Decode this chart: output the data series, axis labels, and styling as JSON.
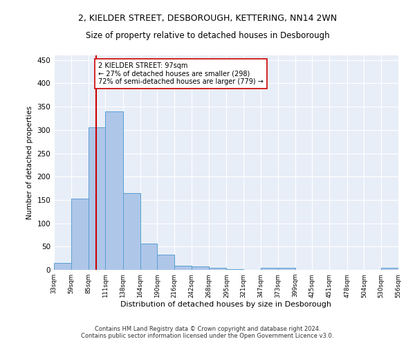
{
  "title": "2, KIELDER STREET, DESBOROUGH, KETTERING, NN14 2WN",
  "subtitle": "Size of property relative to detached houses in Desborough",
  "xlabel": "Distribution of detached houses by size in Desborough",
  "ylabel": "Number of detached properties",
  "bar_color": "#aec6e8",
  "bar_edge_color": "#5a9fd4",
  "background_color": "#e8eef8",
  "grid_color": "#ffffff",
  "property_line_x": 97,
  "property_line_color": "#cc0000",
  "annotation_text": "2 KIELDER STREET: 97sqm\n← 27% of detached houses are smaller (298)\n72% of semi-detached houses are larger (779) →",
  "annotation_box_color": "#ffffff",
  "annotation_box_edge_color": "#cc0000",
  "footer": "Contains HM Land Registry data © Crown copyright and database right 2024.\nContains public sector information licensed under the Open Government Licence v3.0.",
  "bin_edges": [
    33,
    59,
    85,
    111,
    138,
    164,
    190,
    216,
    242,
    268,
    295,
    321,
    347,
    373,
    399,
    425,
    451,
    478,
    504,
    530,
    556
  ],
  "bar_heights": [
    15,
    153,
    305,
    340,
    165,
    57,
    33,
    9,
    7,
    5,
    2,
    0,
    5,
    5,
    0,
    0,
    0,
    0,
    0,
    5
  ],
  "ylim": [
    0,
    460
  ],
  "yticks": [
    0,
    50,
    100,
    150,
    200,
    250,
    300,
    350,
    400,
    450
  ]
}
